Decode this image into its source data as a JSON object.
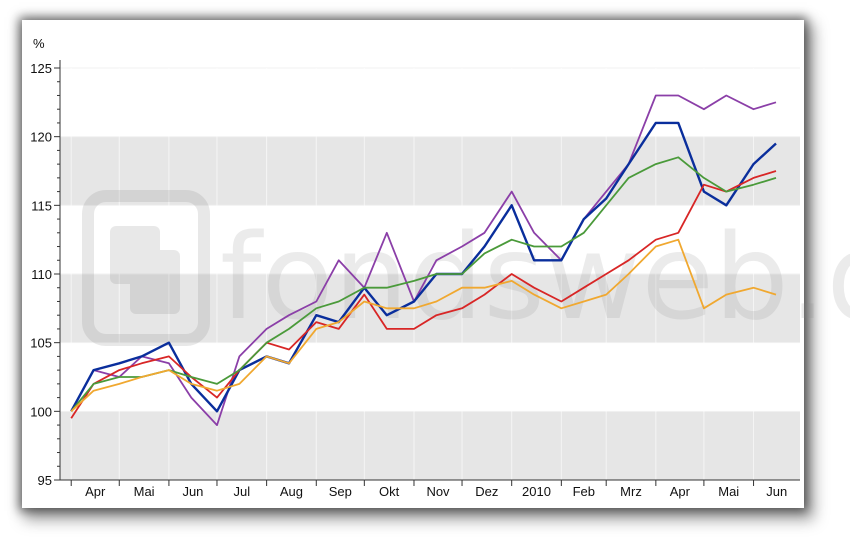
{
  "chart_data": {
    "type": "line",
    "ylabel": "%",
    "ylim": [
      95,
      125
    ],
    "y_ticks": [
      95,
      100,
      105,
      110,
      115,
      120,
      125
    ],
    "x_ticks": [
      "Apr",
      "Mai",
      "Jun",
      "Jul",
      "Aug",
      "Sep",
      "Okt",
      "Nov",
      "Dez",
      "2010",
      "Feb",
      "Mrz",
      "Apr",
      "Mai",
      "Jun"
    ],
    "grid": "alternating horizontal bands",
    "watermark": "fondsweb.de",
    "x": [
      "2009-04-01",
      "2009-04-15",
      "2009-05-01",
      "2009-05-15",
      "2009-06-01",
      "2009-06-15",
      "2009-07-01",
      "2009-07-15",
      "2009-08-01",
      "2009-08-15",
      "2009-09-01",
      "2009-09-15",
      "2009-10-01",
      "2009-10-15",
      "2009-11-01",
      "2009-11-15",
      "2009-12-01",
      "2009-12-15",
      "2010-01-01",
      "2010-01-15",
      "2010-02-01",
      "2010-02-15",
      "2010-03-01",
      "2010-03-15",
      "2010-04-01",
      "2010-04-15",
      "2010-05-01",
      "2010-05-15",
      "2010-06-01",
      "2010-06-15"
    ],
    "series": [
      {
        "color": "#8b3fa8",
        "values": [
          100,
          103,
          102.5,
          104,
          103.5,
          101,
          99,
          104,
          106,
          107,
          108,
          111,
          109,
          113,
          108,
          111,
          112,
          113,
          116,
          113,
          111,
          114,
          116,
          118,
          123,
          123,
          122,
          123,
          122,
          122.5
        ]
      },
      {
        "color": "#0a2e9c",
        "values": [
          100,
          103,
          103.5,
          104,
          105,
          102,
          100,
          103,
          104,
          103.5,
          107,
          106.5,
          109,
          107,
          108,
          110,
          110,
          112,
          115,
          111,
          111,
          114,
          115.5,
          118,
          121,
          121,
          116,
          115,
          118,
          119.5
        ]
      },
      {
        "color": "#d82626",
        "values": [
          99.5,
          102,
          103,
          103.5,
          104,
          102.5,
          101,
          103,
          105,
          104.5,
          106.5,
          106,
          108.5,
          106,
          106,
          107,
          107.5,
          108.5,
          110,
          109,
          108,
          109,
          110,
          111,
          112.5,
          113,
          116.5,
          116,
          117,
          117.5
        ]
      },
      {
        "color": "#4a9a3a",
        "values": [
          100,
          102,
          102.5,
          102.5,
          103,
          102.5,
          102,
          103,
          105,
          106,
          107.5,
          108,
          109,
          109,
          109.5,
          110,
          110,
          111.5,
          112.5,
          112,
          112,
          113,
          115,
          117,
          118,
          118.5,
          117,
          116,
          116.5,
          117
        ]
      },
      {
        "color": "#f0a830",
        "values": [
          100,
          101.5,
          102,
          102.5,
          103,
          102,
          101.5,
          102,
          104,
          103.5,
          106,
          106.5,
          108,
          107.5,
          107.5,
          108,
          109,
          109,
          109.5,
          108.5,
          107.5,
          108,
          108.5,
          110,
          112,
          112.5,
          107.5,
          108.5,
          109,
          108.5
        ]
      }
    ]
  }
}
